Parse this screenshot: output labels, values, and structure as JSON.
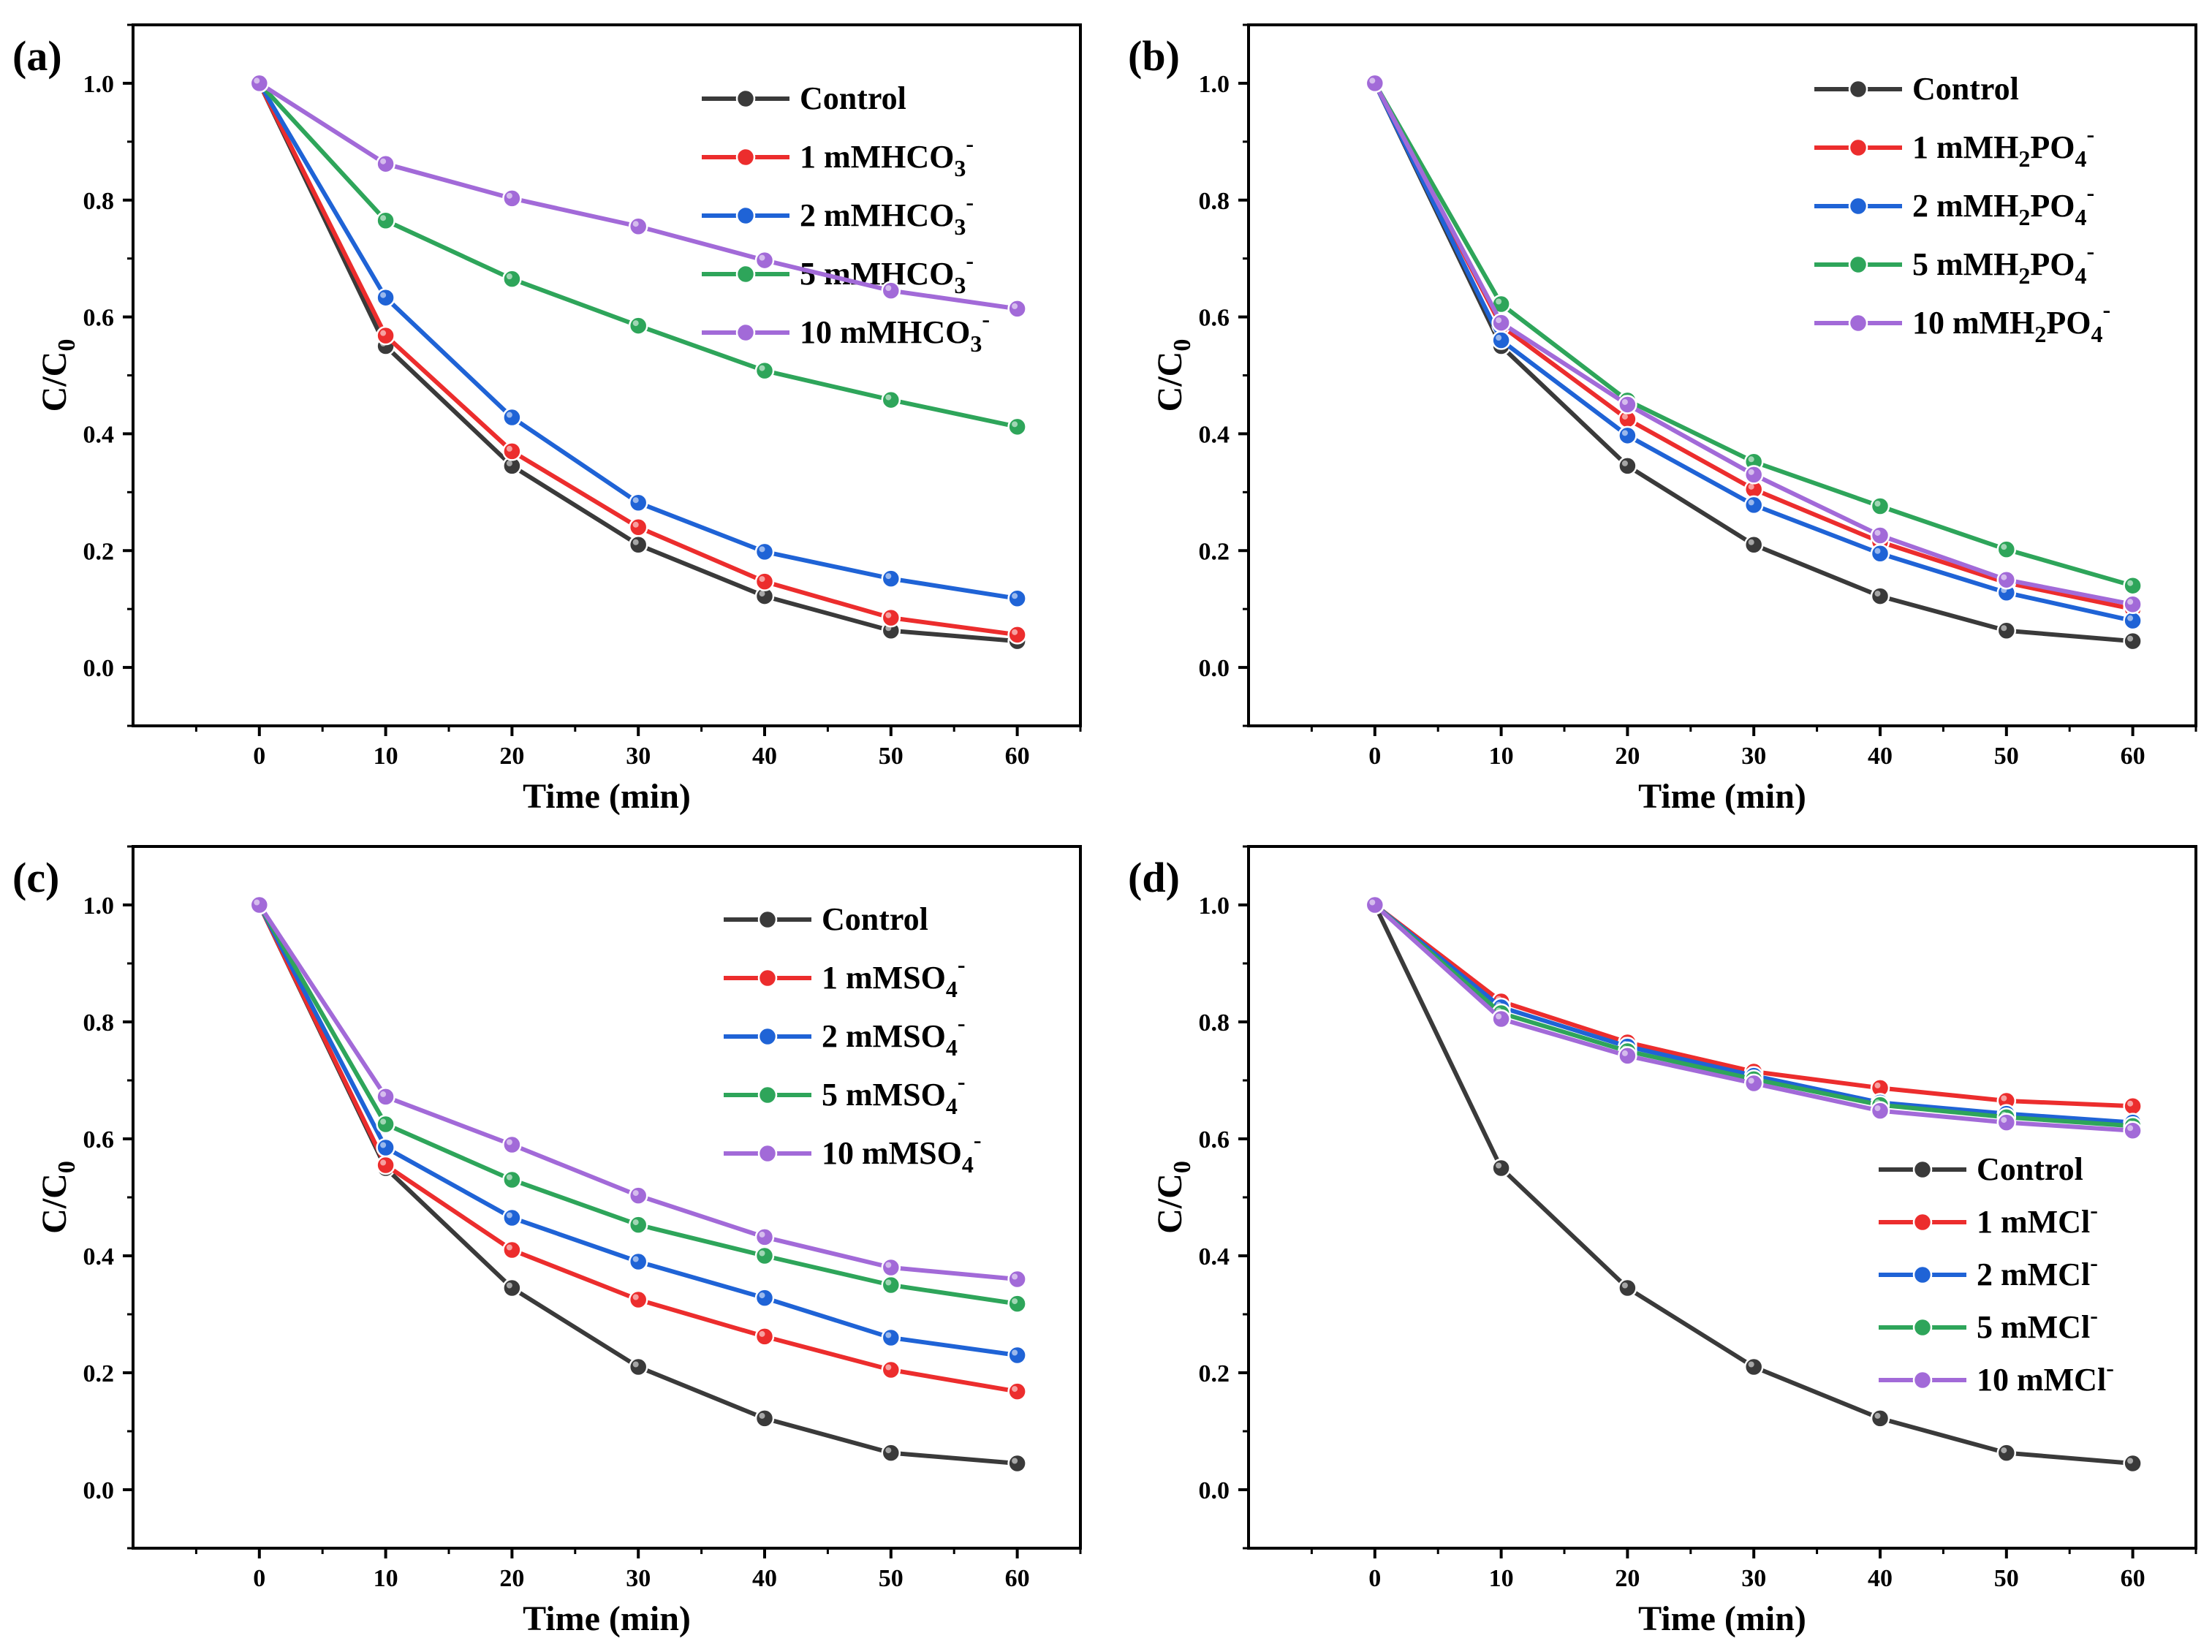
{
  "colors": {
    "Control": "#3a3a3a",
    "s1": "#ec2d2d",
    "s2": "#1f63d6",
    "s5": "#2ea55a",
    "s10": "#a26ad8"
  },
  "chart_data": [
    {
      "type": "line",
      "panel_label": "(a)",
      "xlabel": "Time (min)",
      "ylabel": "C/C",
      "ylabel_sub": "0",
      "xlim": [
        -10,
        65
      ],
      "ylim": [
        -0.1,
        1.1
      ],
      "xticks": [
        0,
        10,
        20,
        30,
        40,
        50,
        60
      ],
      "yticks": [
        "0.0",
        "0.2",
        "0.4",
        "0.6",
        "0.8",
        "1.0"
      ],
      "legend_position": "top-right",
      "x": [
        0,
        10,
        20,
        30,
        40,
        50,
        60
      ],
      "series": [
        {
          "name": "Control",
          "label": "Control",
          "sub": "",
          "suffix": "",
          "sup": "",
          "color_key": "Control",
          "values": [
            1.0,
            0.55,
            0.345,
            0.21,
            0.122,
            0.063,
            0.045
          ]
        },
        {
          "name": "1 mMHCO3-",
          "label": "1 mMHCO",
          "sub": "3",
          "suffix": "",
          "sup": "-",
          "color_key": "s1",
          "values": [
            1.0,
            0.568,
            0.37,
            0.24,
            0.147,
            0.085,
            0.056
          ]
        },
        {
          "name": "2 mMHCO3-",
          "label": "2 mMHCO",
          "sub": "3",
          "suffix": "",
          "sup": "-",
          "color_key": "s2",
          "values": [
            1.0,
            0.633,
            0.428,
            0.282,
            0.198,
            0.152,
            0.118
          ]
        },
        {
          "name": "5 mMHCO3-",
          "label": "5 mMHCO",
          "sub": "3",
          "suffix": "",
          "sup": "-",
          "color_key": "s5",
          "values": [
            1.0,
            0.765,
            0.665,
            0.585,
            0.508,
            0.458,
            0.412
          ]
        },
        {
          "name": "10 mMHCO3-",
          "label": "10 mMHCO",
          "sub": "3",
          "suffix": "",
          "sup": "-",
          "color_key": "s10",
          "values": [
            1.0,
            0.862,
            0.803,
            0.755,
            0.697,
            0.645,
            0.614
          ]
        }
      ]
    },
    {
      "type": "line",
      "panel_label": "(b)",
      "xlabel": "Time (min)",
      "ylabel": "C/C",
      "ylabel_sub": "0",
      "xlim": [
        -10,
        65
      ],
      "ylim": [
        -0.1,
        1.1
      ],
      "xticks": [
        0,
        10,
        20,
        30,
        40,
        50,
        60
      ],
      "yticks": [
        "0.0",
        "0.2",
        "0.4",
        "0.6",
        "0.8",
        "1.0"
      ],
      "legend_position": "top-right",
      "x": [
        0,
        10,
        20,
        30,
        40,
        50,
        60
      ],
      "series": [
        {
          "name": "Control",
          "label": "Control",
          "sub": "",
          "suffix": "",
          "sup": "",
          "color_key": "Control",
          "values": [
            1.0,
            0.55,
            0.345,
            0.21,
            0.122,
            0.063,
            0.045
          ]
        },
        {
          "name": "1 mMH2PO4-",
          "label": "1 mMH",
          "sub": "2",
          "suffix": "PO",
          "sub2": "4",
          "sup": "-",
          "color_key": "s1",
          "values": [
            1.0,
            0.585,
            0.425,
            0.305,
            0.215,
            0.145,
            0.1
          ]
        },
        {
          "name": "2 mMH2PO4-",
          "label": "2 mMH",
          "sub": "2",
          "suffix": "PO",
          "sub2": "4",
          "sup": "-",
          "color_key": "s2",
          "values": [
            1.0,
            0.56,
            0.397,
            0.278,
            0.195,
            0.128,
            0.08
          ]
        },
        {
          "name": "5 mMH2PO4-",
          "label": "5 mMH",
          "sub": "2",
          "suffix": "PO",
          "sub2": "4",
          "sup": "-",
          "color_key": "s5",
          "values": [
            1.0,
            0.622,
            0.457,
            0.352,
            0.276,
            0.202,
            0.14
          ]
        },
        {
          "name": "10 mMH2PO4-",
          "label": "10 mMH",
          "sub": "2",
          "suffix": "PO",
          "sub2": "4",
          "sup": "-",
          "color_key": "s10",
          "values": [
            1.0,
            0.59,
            0.45,
            0.33,
            0.226,
            0.15,
            0.108
          ]
        }
      ]
    },
    {
      "type": "line",
      "panel_label": "(c)",
      "xlabel": "Time (min)",
      "ylabel": "C/C",
      "ylabel_sub": "0",
      "xlim": [
        -10,
        65
      ],
      "ylim": [
        -0.1,
        1.1
      ],
      "xticks": [
        0,
        10,
        20,
        30,
        40,
        50,
        60
      ],
      "yticks": [
        "0.0",
        "0.2",
        "0.4",
        "0.6",
        "0.8",
        "1.0"
      ],
      "legend_position": "top-right",
      "x": [
        0,
        10,
        20,
        30,
        40,
        50,
        60
      ],
      "series": [
        {
          "name": "Control",
          "label": "Control",
          "sub": "",
          "suffix": "",
          "sup": "",
          "color_key": "Control",
          "values": [
            1.0,
            0.55,
            0.345,
            0.21,
            0.122,
            0.063,
            0.045
          ]
        },
        {
          "name": "1 mMSO4-",
          "label": "1 mMSO",
          "sub": "4",
          "suffix": "",
          "sup": "-",
          "color_key": "s1",
          "values": [
            1.0,
            0.555,
            0.41,
            0.325,
            0.262,
            0.205,
            0.168
          ]
        },
        {
          "name": "2 mMSO4-",
          "label": "2 mMSO",
          "sub": "4",
          "suffix": "",
          "sup": "-",
          "color_key": "s2",
          "values": [
            1.0,
            0.585,
            0.465,
            0.39,
            0.328,
            0.26,
            0.23
          ]
        },
        {
          "name": "5 mMSO4-",
          "label": "5 mMSO",
          "sub": "4",
          "suffix": "",
          "sup": "-",
          "color_key": "s5",
          "values": [
            1.0,
            0.625,
            0.53,
            0.453,
            0.4,
            0.35,
            0.318
          ]
        },
        {
          "name": "10 mMSO4-",
          "label": "10 mMSO",
          "sub": "4",
          "suffix": "",
          "sup": "-",
          "color_key": "s10",
          "values": [
            1.0,
            0.672,
            0.59,
            0.503,
            0.432,
            0.38,
            0.36
          ]
        }
      ]
    },
    {
      "type": "line",
      "panel_label": "(d)",
      "xlabel": "Time (min)",
      "ylabel": "C/C",
      "ylabel_sub": "0",
      "xlim": [
        -10,
        65
      ],
      "ylim": [
        -0.1,
        1.1
      ],
      "xticks": [
        0,
        10,
        20,
        30,
        40,
        50,
        60
      ],
      "yticks": [
        "0.0",
        "0.2",
        "0.4",
        "0.6",
        "0.8",
        "1.0"
      ],
      "legend_position": "bottom-right",
      "x": [
        0,
        10,
        20,
        30,
        40,
        50,
        60
      ],
      "series": [
        {
          "name": "Control",
          "label": "Control",
          "sub": "",
          "suffix": "",
          "sup": "",
          "color_key": "Control",
          "values": [
            1.0,
            0.55,
            0.345,
            0.21,
            0.122,
            0.063,
            0.045
          ]
        },
        {
          "name": "1 mMCl-",
          "label": "1 mMCl",
          "sub": "",
          "suffix": "",
          "sup": "-",
          "color_key": "s1",
          "values": [
            1.0,
            0.835,
            0.765,
            0.715,
            0.687,
            0.665,
            0.656
          ]
        },
        {
          "name": "2 mMCl-",
          "label": "2 mMCl",
          "sub": "",
          "suffix": "",
          "sup": "-",
          "color_key": "s2",
          "values": [
            1.0,
            0.825,
            0.758,
            0.708,
            0.662,
            0.643,
            0.628
          ]
        },
        {
          "name": "5 mMCl-",
          "label": "5 mMCl",
          "sub": "",
          "suffix": "",
          "sup": "-",
          "color_key": "s5",
          "values": [
            1.0,
            0.815,
            0.75,
            0.702,
            0.658,
            0.637,
            0.622
          ]
        },
        {
          "name": "10 mMCl-",
          "label": "10 mMCl",
          "sub": "",
          "suffix": "",
          "sup": "-",
          "color_key": "s10",
          "values": [
            1.0,
            0.805,
            0.742,
            0.695,
            0.648,
            0.628,
            0.614
          ]
        }
      ]
    }
  ]
}
